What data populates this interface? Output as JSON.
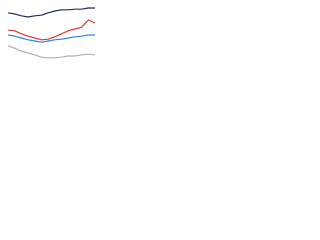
{
  "chart_data": {
    "type": "line",
    "categories": [
      null,
      null,
      null,
      null,
      null,
      null,
      null,
      null,
      null,
      null,
      null,
      null,
      null,
      null
    ],
    "ylim": [
      0,
      100
    ],
    "series": [
      {
        "color": "#1f2f5e",
        "values": [
          87,
          85,
          82,
          80,
          82,
          83,
          87,
          90,
          92,
          92,
          93,
          93,
          95,
          95
        ]
      },
      {
        "color": "#d9383a",
        "values": [
          58,
          57,
          52,
          48,
          45,
          42,
          43,
          47,
          52,
          57,
          60,
          63,
          75,
          70
        ]
      },
      {
        "color": "#2e86de",
        "values": [
          50,
          48,
          45,
          42,
          40,
          38,
          40,
          42,
          43,
          45,
          47,
          48,
          50,
          50
        ]
      },
      {
        "color": "#b0b0b0",
        "values": [
          32,
          28,
          23,
          20,
          17,
          13,
          12,
          12,
          13,
          15,
          15,
          17,
          18,
          17
        ]
      }
    ]
  }
}
